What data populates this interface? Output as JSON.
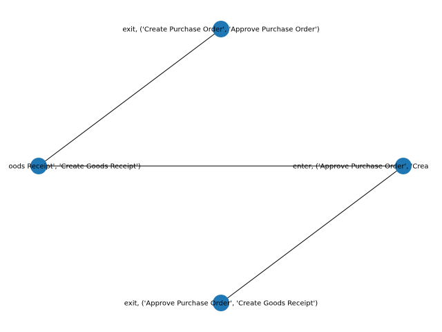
{
  "colors": {
    "node_fill": "#1f77b4",
    "edge": "#000000",
    "background": "#ffffff"
  },
  "nodes": [
    {
      "id": "top",
      "label": "exit, ('Create Purchase Order', 'Approve Purchase Order')"
    },
    {
      "id": "left",
      "label": "oods Receipt', 'Create Goods Receipt')"
    },
    {
      "id": "right",
      "label": "enter, ('Approve Purchase Order', 'Crea"
    },
    {
      "id": "bottom",
      "label": "exit, ('Approve Purchase Order', 'Create Goods Receipt')"
    }
  ],
  "edges": [
    {
      "from": "top",
      "to": "left"
    },
    {
      "from": "right",
      "to": "left"
    },
    {
      "from": "right",
      "to": "bottom"
    }
  ]
}
